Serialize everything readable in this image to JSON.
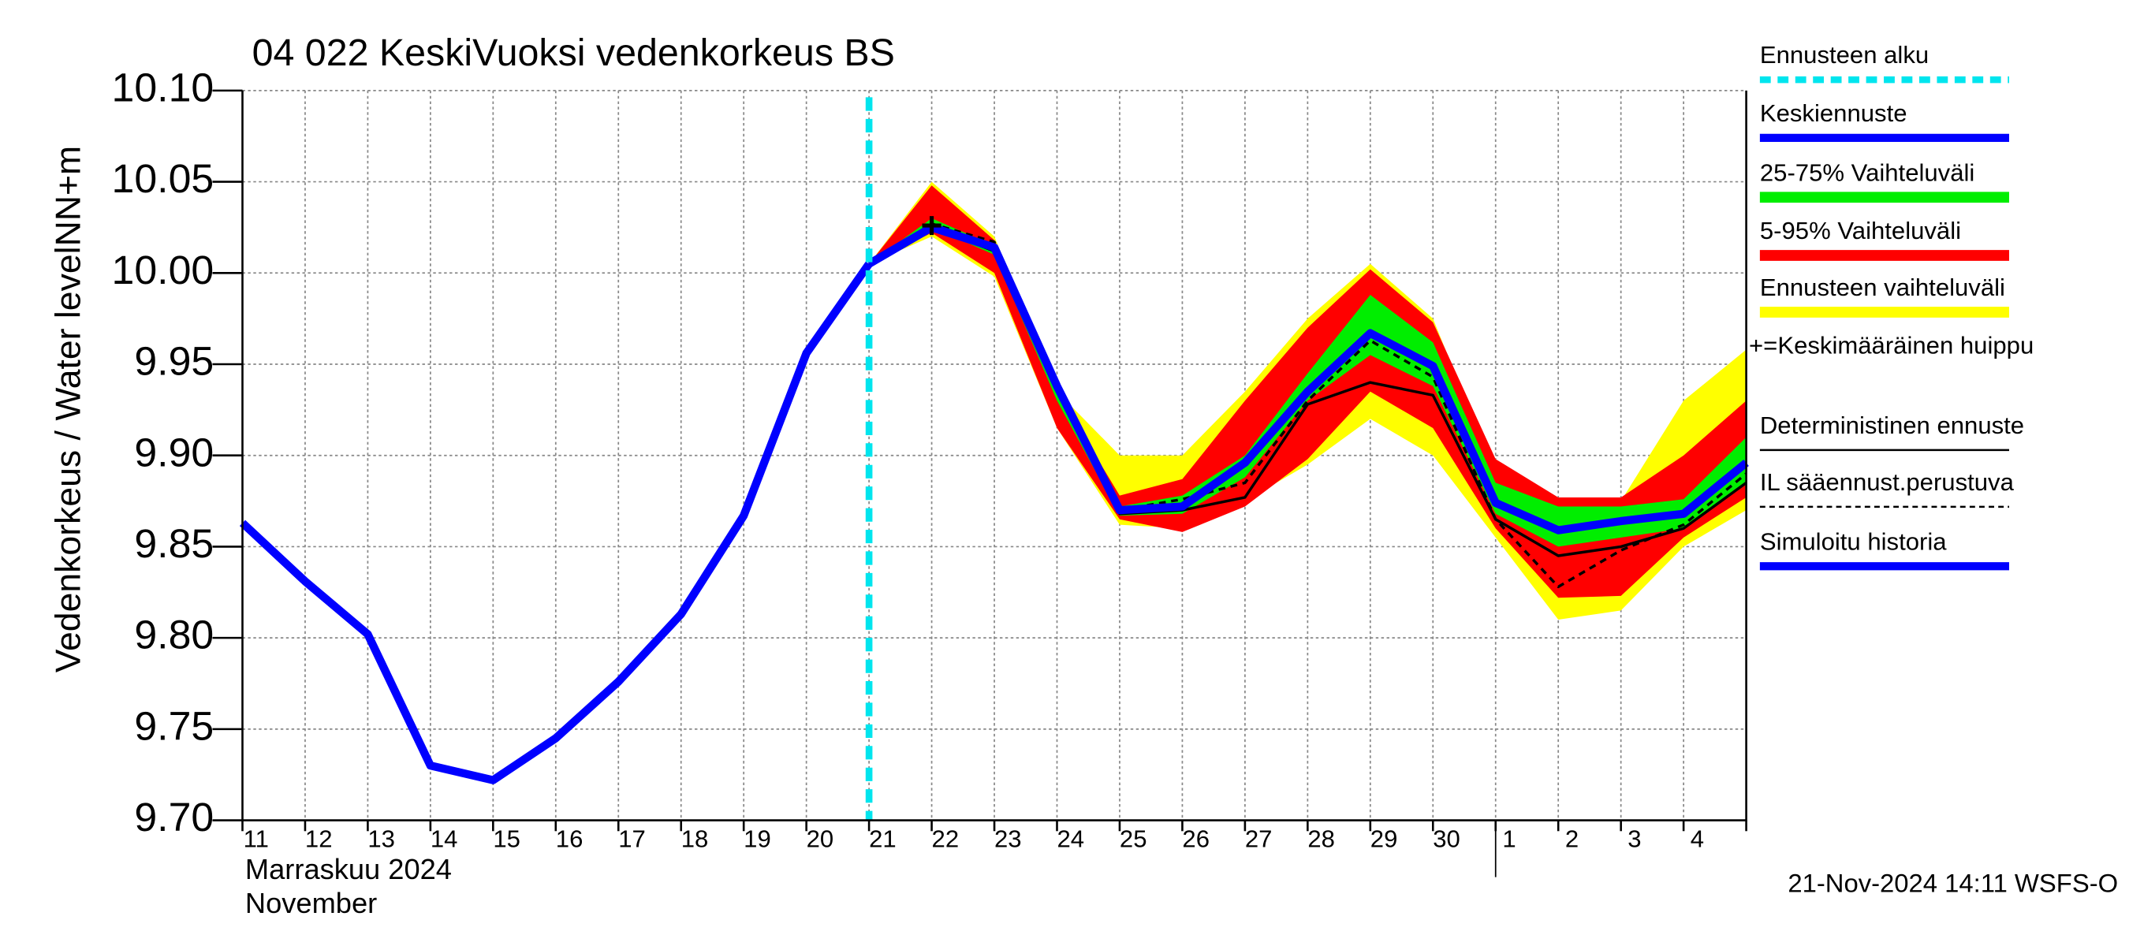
{
  "chart_data": {
    "type": "band-line",
    "title": "04 022 KeskiVuoksi vedenkorkeus BS",
    "y_label": "Vedenkorkeus / Water level",
    "y_unit": "NN+m",
    "month_label": "Marraskuu 2024",
    "month_label_en": "November",
    "timestamp": "21-Nov-2024 14:11 WSFS-O",
    "categories": [
      "11",
      "12",
      "13",
      "14",
      "15",
      "16",
      "17",
      "18",
      "19",
      "20",
      "21",
      "22",
      "23",
      "24",
      "25",
      "26",
      "27",
      "28",
      "29",
      "30",
      "1",
      "2",
      "3",
      "4",
      null
    ],
    "xlim": [
      0,
      24
    ],
    "month_break": 20,
    "forecast_start": 10,
    "forecast_start_label": "Ennusteen alku",
    "forecast_start_color": "#00e5ee",
    "ylim": [
      9.7,
      10.1
    ],
    "yticks": [
      {
        "value": 9.7,
        "label": "9.70"
      },
      9.75,
      {
        "value": 9.8,
        "label": "9.80"
      },
      9.85,
      {
        "value": 9.9,
        "label": "9.90"
      },
      9.95,
      {
        "value": 10.0,
        "label": "10.00"
      },
      10.05,
      {
        "value": 10.1,
        "label": "10.10"
      }
    ],
    "grid": true,
    "bands": [
      {
        "name": "Ennusteen vaihteluväli",
        "color": "#ffff00",
        "high": [
          null,
          null,
          null,
          null,
          null,
          null,
          null,
          null,
          null,
          null,
          10.005,
          10.05,
          10.02,
          9.935,
          9.9,
          9.9,
          9.935,
          9.975,
          10.005,
          9.975,
          9.89,
          9.875,
          9.875,
          9.93,
          9.958
        ],
        "low": [
          null,
          null,
          null,
          null,
          null,
          null,
          null,
          null,
          null,
          null,
          10.005,
          10.02,
          9.998,
          9.915,
          9.862,
          9.86,
          9.875,
          9.895,
          9.92,
          9.9,
          9.855,
          9.81,
          9.815,
          9.85,
          9.87
        ]
      },
      {
        "name": "5-95% Vaihteluväli",
        "color": "#ff0000",
        "high": [
          null,
          null,
          null,
          null,
          null,
          null,
          null,
          null,
          null,
          null,
          10.005,
          10.048,
          10.018,
          9.935,
          9.878,
          9.887,
          9.93,
          9.97,
          10.002,
          9.973,
          9.898,
          9.877,
          9.877,
          9.9,
          9.93
        ],
        "low": [
          null,
          null,
          null,
          null,
          null,
          null,
          null,
          null,
          null,
          null,
          10.005,
          10.022,
          10.0,
          9.915,
          9.865,
          9.858,
          9.872,
          9.898,
          9.935,
          9.915,
          9.86,
          9.822,
          9.823,
          9.855,
          9.877
        ]
      },
      {
        "name": "25-75% Vaihteluväli",
        "color": "#00ee00",
        "high": [
          null,
          null,
          null,
          null,
          null,
          null,
          null,
          null,
          null,
          null,
          10.005,
          10.03,
          10.015,
          9.935,
          9.872,
          9.878,
          9.9,
          9.945,
          9.988,
          9.962,
          9.885,
          9.872,
          9.872,
          9.876,
          9.91
        ],
        "low": [
          null,
          null,
          null,
          null,
          null,
          null,
          null,
          null,
          null,
          null,
          10.005,
          10.025,
          10.01,
          9.93,
          9.867,
          9.868,
          9.888,
          9.93,
          9.955,
          9.938,
          9.868,
          9.85,
          9.855,
          9.86,
          9.885
        ]
      }
    ],
    "series": [
      {
        "name": "Simuloitu historia",
        "color": "#0000ff",
        "width": 6,
        "values": [
          9.863,
          9.831,
          9.802,
          9.73,
          9.722,
          9.745,
          9.776,
          9.813,
          9.867,
          9.956,
          10.005,
          null,
          null,
          null,
          null,
          null,
          null,
          null,
          null,
          null,
          null,
          null,
          null,
          null,
          null
        ]
      },
      {
        "name": "Deterministinen ennuste",
        "color": "#000000",
        "width": 2,
        "values": [
          null,
          null,
          null,
          null,
          null,
          null,
          null,
          null,
          null,
          null,
          10.005,
          10.025,
          10.012,
          9.935,
          9.868,
          9.87,
          9.877,
          9.928,
          9.94,
          9.933,
          9.865,
          9.845,
          9.85,
          9.86,
          9.885
        ]
      },
      {
        "name": "IL sääennust.perustuva",
        "color": "#000000",
        "width": 2,
        "dash": true,
        "values": [
          null,
          null,
          null,
          null,
          null,
          null,
          null,
          null,
          null,
          null,
          10.005,
          10.027,
          10.017,
          9.935,
          9.87,
          9.876,
          9.885,
          9.93,
          9.963,
          9.943,
          9.865,
          9.828,
          9.848,
          9.862,
          9.89
        ]
      },
      {
        "name": "Keskiennuste",
        "color": "#0000ff",
        "width": 6,
        "values": [
          null,
          null,
          null,
          null,
          null,
          null,
          null,
          null,
          null,
          null,
          10.005,
          10.025,
          10.014,
          9.938,
          9.87,
          9.872,
          9.896,
          9.935,
          9.967,
          9.949,
          9.874,
          9.859,
          9.864,
          9.868,
          9.896
        ]
      }
    ],
    "peak": {
      "label": "+=Keskimääräinen huippu",
      "x": 11,
      "value": 10.026
    }
  }
}
